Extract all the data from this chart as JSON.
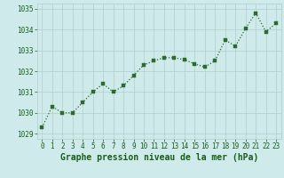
{
  "x": [
    0,
    1,
    2,
    3,
    4,
    5,
    6,
    7,
    8,
    9,
    10,
    11,
    12,
    13,
    14,
    15,
    16,
    17,
    18,
    19,
    20,
    21,
    22,
    23
  ],
  "y": [
    1029.3,
    1030.3,
    1030.0,
    1030.0,
    1030.5,
    1031.0,
    1031.4,
    1031.0,
    1031.3,
    1031.8,
    1032.3,
    1032.5,
    1032.65,
    1032.65,
    1032.55,
    1032.35,
    1032.2,
    1032.5,
    1033.5,
    1033.2,
    1034.05,
    1034.8,
    1033.9,
    1034.3
  ],
  "title": "Graphe pression niveau de la mer (hPa)",
  "line_color": "#2d6a2d",
  "marker_color": "#2d6a2d",
  "bg_color": "#ceeaea",
  "grid_color": "#b0cccc",
  "xlim": [
    -0.5,
    23.5
  ],
  "ylim": [
    1028.75,
    1035.25
  ],
  "yticks": [
    1029,
    1030,
    1031,
    1032,
    1033,
    1034,
    1035
  ],
  "xticks": [
    0,
    1,
    2,
    3,
    4,
    5,
    6,
    7,
    8,
    9,
    10,
    11,
    12,
    13,
    14,
    15,
    16,
    17,
    18,
    19,
    20,
    21,
    22,
    23
  ],
  "title_fontsize": 7.0,
  "tick_fontsize": 5.5,
  "title_color": "#1a5c1a",
  "tick_color": "#1a5c1a"
}
